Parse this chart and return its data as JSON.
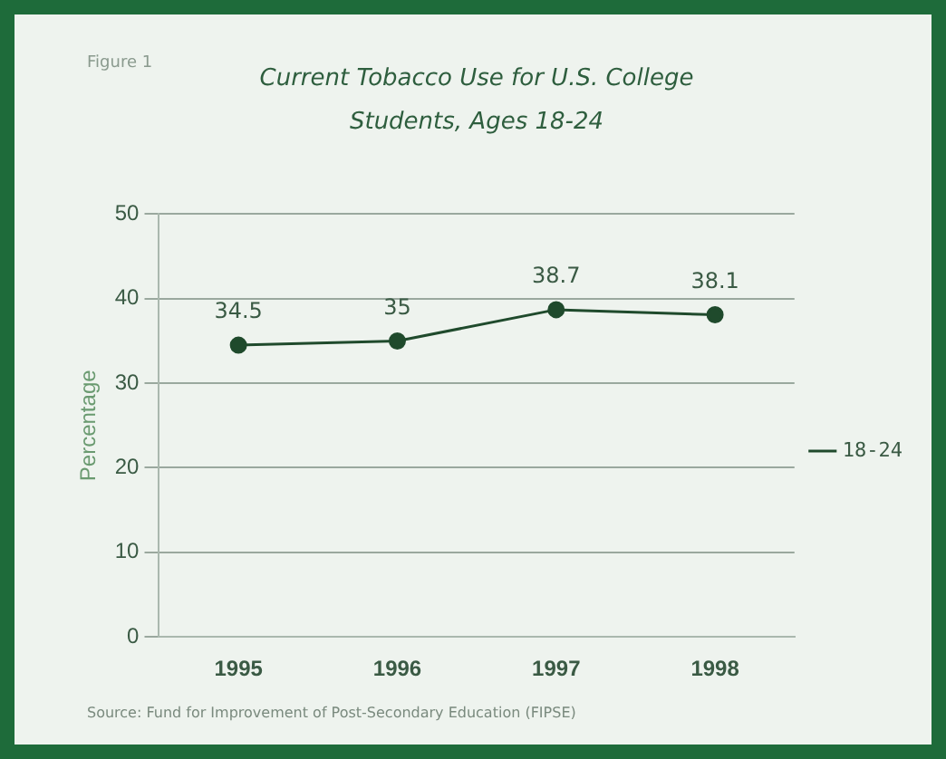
{
  "chart_data": {
    "type": "line",
    "title": "Current Tobacco Use for U.S. College Students, Ages 18-24",
    "ylabel": "Percentage",
    "categories": [
      "1995",
      "1996",
      "1997",
      "1998"
    ],
    "series": [
      {
        "name": "18-24",
        "color": "#1f4a2c",
        "values": [
          34.5,
          35,
          38.7,
          38.1
        ]
      }
    ],
    "ylim": [
      0,
      50
    ],
    "yticks": [
      0,
      10,
      20,
      30,
      40,
      50
    ],
    "grid": "y",
    "legend": "right",
    "marker": "circle",
    "line_style": "solid",
    "data_labels": true,
    "annotations": [
      "Figure 1",
      "Source: Fund for Improvement of Post-Secondary Education (FIPSE)"
    ]
  }
}
